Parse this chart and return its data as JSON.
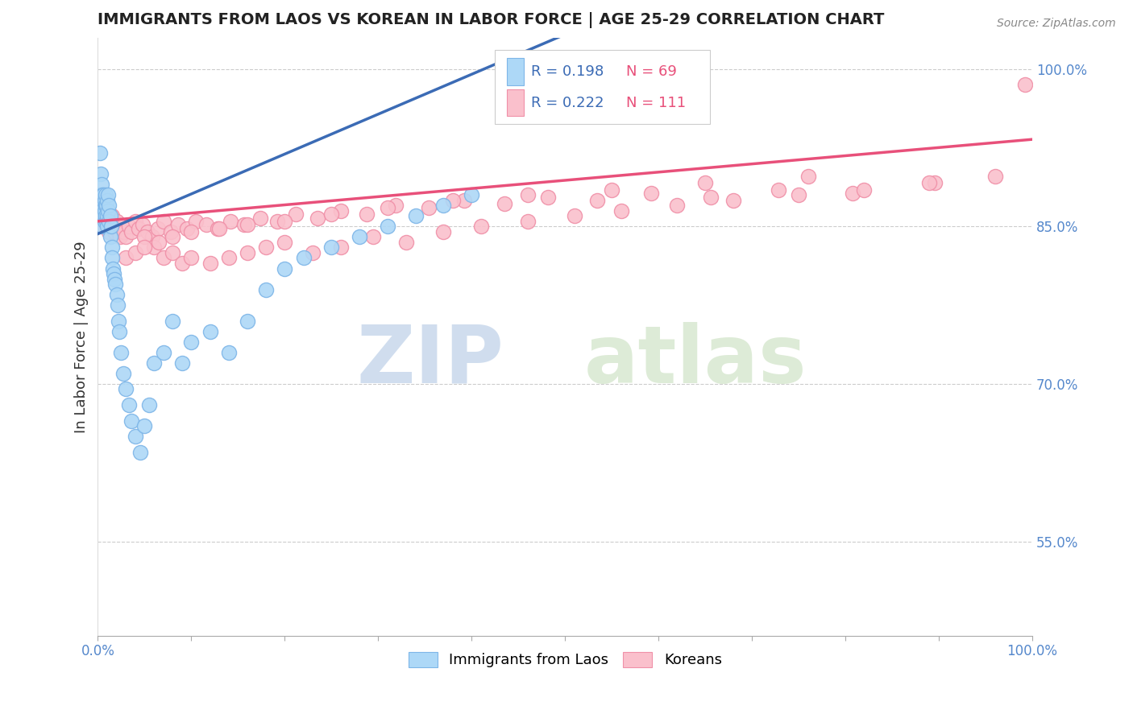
{
  "title": "IMMIGRANTS FROM LAOS VS KOREAN IN LABOR FORCE | AGE 25-29 CORRELATION CHART",
  "source_text": "Source: ZipAtlas.com",
  "ylabel": "In Labor Force | Age 25-29",
  "xlim": [
    0.0,
    1.0
  ],
  "ylim": [
    0.46,
    1.03
  ],
  "y_ticks": [
    0.55,
    0.7,
    0.85,
    1.0
  ],
  "y_tick_labels": [
    "55.0%",
    "70.0%",
    "85.0%",
    "100.0%"
  ],
  "watermark_zip": "ZIP",
  "watermark_atlas": "atlas",
  "laos_color": "#ADD8F7",
  "laos_edge_color": "#7EB6E8",
  "korean_color": "#FAC0CC",
  "korean_edge_color": "#F090A8",
  "laos_line_color": "#3B6BB5",
  "korean_line_color": "#E8507A",
  "laos_R": 0.198,
  "laos_N": 69,
  "korean_R": 0.222,
  "korean_N": 111,
  "legend_R_color": "#3B6BB5",
  "legend_N_color": "#E8507A",
  "laos_x": [
    0.001,
    0.002,
    0.002,
    0.003,
    0.003,
    0.003,
    0.004,
    0.004,
    0.004,
    0.005,
    0.005,
    0.005,
    0.006,
    0.006,
    0.006,
    0.007,
    0.007,
    0.007,
    0.008,
    0.008,
    0.008,
    0.009,
    0.009,
    0.01,
    0.01,
    0.01,
    0.011,
    0.011,
    0.012,
    0.012,
    0.013,
    0.013,
    0.014,
    0.015,
    0.015,
    0.016,
    0.017,
    0.018,
    0.019,
    0.02,
    0.021,
    0.022,
    0.023,
    0.025,
    0.027,
    0.03,
    0.033,
    0.036,
    0.04,
    0.045,
    0.05,
    0.055,
    0.06,
    0.07,
    0.08,
    0.09,
    0.1,
    0.12,
    0.14,
    0.16,
    0.18,
    0.2,
    0.22,
    0.25,
    0.28,
    0.31,
    0.34,
    0.37,
    0.4
  ],
  "laos_y": [
    0.87,
    0.86,
    0.92,
    0.88,
    0.9,
    0.87,
    0.89,
    0.875,
    0.86,
    0.88,
    0.87,
    0.85,
    0.875,
    0.86,
    0.88,
    0.865,
    0.875,
    0.855,
    0.87,
    0.88,
    0.86,
    0.87,
    0.855,
    0.875,
    0.86,
    0.85,
    0.865,
    0.88,
    0.855,
    0.87,
    0.86,
    0.84,
    0.85,
    0.83,
    0.82,
    0.81,
    0.805,
    0.8,
    0.795,
    0.785,
    0.775,
    0.76,
    0.75,
    0.73,
    0.71,
    0.695,
    0.68,
    0.665,
    0.65,
    0.635,
    0.66,
    0.68,
    0.72,
    0.73,
    0.76,
    0.72,
    0.74,
    0.75,
    0.73,
    0.76,
    0.79,
    0.81,
    0.82,
    0.83,
    0.84,
    0.85,
    0.86,
    0.87,
    0.88
  ],
  "korean_x": [
    0.001,
    0.002,
    0.003,
    0.003,
    0.004,
    0.004,
    0.005,
    0.005,
    0.005,
    0.006,
    0.006,
    0.007,
    0.007,
    0.008,
    0.008,
    0.009,
    0.009,
    0.01,
    0.01,
    0.011,
    0.012,
    0.013,
    0.014,
    0.015,
    0.016,
    0.017,
    0.018,
    0.019,
    0.02,
    0.022,
    0.024,
    0.026,
    0.028,
    0.03,
    0.033,
    0.036,
    0.04,
    0.044,
    0.048,
    0.053,
    0.058,
    0.064,
    0.07,
    0.078,
    0.086,
    0.095,
    0.105,
    0.116,
    0.128,
    0.142,
    0.157,
    0.174,
    0.192,
    0.212,
    0.235,
    0.26,
    0.288,
    0.319,
    0.354,
    0.392,
    0.435,
    0.482,
    0.534,
    0.592,
    0.656,
    0.728,
    0.808,
    0.896,
    0.992,
    0.05,
    0.06,
    0.07,
    0.08,
    0.09,
    0.1,
    0.12,
    0.14,
    0.16,
    0.18,
    0.2,
    0.23,
    0.26,
    0.295,
    0.33,
    0.37,
    0.41,
    0.46,
    0.51,
    0.56,
    0.62,
    0.68,
    0.75,
    0.82,
    0.89,
    0.96,
    0.03,
    0.04,
    0.05,
    0.065,
    0.08,
    0.1,
    0.13,
    0.16,
    0.2,
    0.25,
    0.31,
    0.38,
    0.46,
    0.55,
    0.65,
    0.76
  ],
  "korean_y": [
    0.88,
    0.86,
    0.87,
    0.85,
    0.875,
    0.855,
    0.865,
    0.86,
    0.87,
    0.855,
    0.865,
    0.85,
    0.87,
    0.855,
    0.86,
    0.865,
    0.855,
    0.85,
    0.86,
    0.865,
    0.845,
    0.85,
    0.855,
    0.86,
    0.85,
    0.855,
    0.845,
    0.85,
    0.855,
    0.845,
    0.84,
    0.85,
    0.845,
    0.84,
    0.85,
    0.845,
    0.855,
    0.848,
    0.852,
    0.845,
    0.84,
    0.848,
    0.855,
    0.845,
    0.852,
    0.848,
    0.855,
    0.852,
    0.848,
    0.855,
    0.852,
    0.858,
    0.855,
    0.862,
    0.858,
    0.865,
    0.862,
    0.87,
    0.868,
    0.875,
    0.872,
    0.878,
    0.875,
    0.882,
    0.878,
    0.885,
    0.882,
    0.892,
    0.985,
    0.84,
    0.83,
    0.82,
    0.825,
    0.815,
    0.82,
    0.815,
    0.82,
    0.825,
    0.83,
    0.835,
    0.825,
    0.83,
    0.84,
    0.835,
    0.845,
    0.85,
    0.855,
    0.86,
    0.865,
    0.87,
    0.875,
    0.88,
    0.885,
    0.892,
    0.898,
    0.82,
    0.825,
    0.83,
    0.835,
    0.84,
    0.845,
    0.848,
    0.852,
    0.855,
    0.862,
    0.868,
    0.875,
    0.88,
    0.885,
    0.892,
    0.898
  ]
}
